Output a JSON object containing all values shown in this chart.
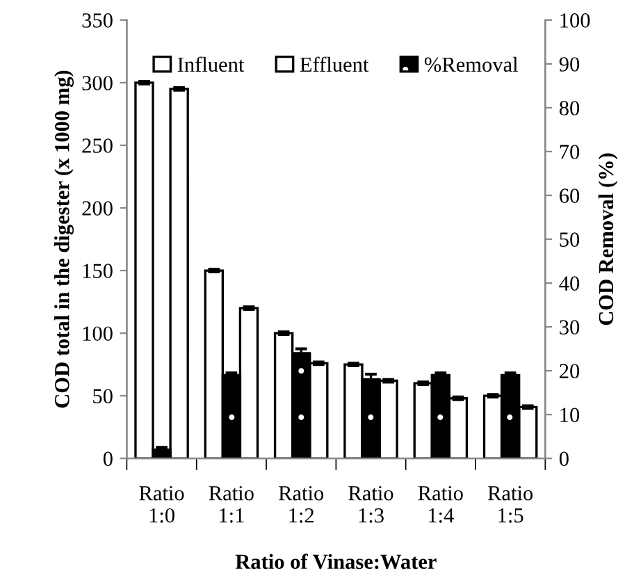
{
  "chart_data": {
    "type": "bar",
    "xlabel": "Ratio of Vinase:Water",
    "ylabel": "COD total in the digester (x 1000 mg)",
    "y2label": "COD Removal (%)",
    "categories": [
      "Ratio\n1:0",
      "Ratio\n1:1",
      "Ratio\n1:2",
      "Ratio\n1:3",
      "Ratio\n1:4",
      "Ratio\n1:5"
    ],
    "series": [
      {
        "name": "Influent",
        "color": "#ffffff",
        "values": [
          300,
          150,
          100,
          75,
          60,
          50
        ],
        "errors": [
          1,
          1,
          1,
          1,
          1,
          1
        ]
      },
      {
        "name": "Effluent",
        "color": "#ffffff",
        "values": [
          295,
          120,
          76,
          62,
          48,
          41
        ],
        "errors": [
          1,
          1,
          1,
          1,
          1,
          1
        ]
      },
      {
        "name": "%Removal",
        "color": "#000000",
        "axis": "y2",
        "values": [
          2,
          19,
          24,
          18,
          19,
          19
        ],
        "errors": [
          0.5,
          0.5,
          1,
          1.2,
          0.5,
          0.5
        ]
      }
    ],
    "ylim": [
      0,
      350
    ],
    "yticks": [
      0,
      50,
      100,
      150,
      200,
      250,
      300,
      350
    ],
    "y2lim": [
      0,
      100
    ],
    "y2ticks": [
      0,
      10,
      20,
      30,
      40,
      50,
      60,
      70,
      80,
      90,
      100
    ],
    "grid": false,
    "legend": "top"
  }
}
